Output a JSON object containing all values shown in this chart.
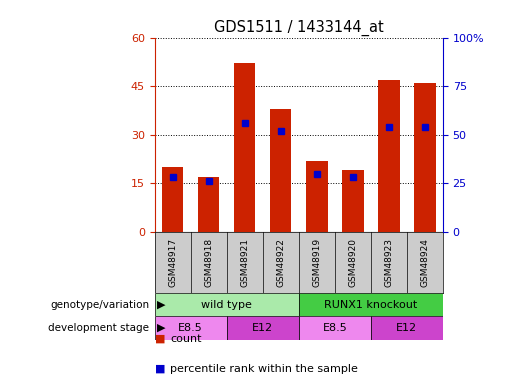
{
  "title": "GDS1511 / 1433144_at",
  "samples": [
    "GSM48917",
    "GSM48918",
    "GSM48921",
    "GSM48922",
    "GSM48919",
    "GSM48920",
    "GSM48923",
    "GSM48924"
  ],
  "counts": [
    20,
    17,
    52,
    38,
    22,
    19,
    47,
    46
  ],
  "percentiles": [
    28,
    26,
    56,
    52,
    30,
    28,
    54,
    54
  ],
  "left_ylim": [
    0,
    60
  ],
  "right_ylim": [
    0,
    100
  ],
  "left_yticks": [
    0,
    15,
    30,
    45,
    60
  ],
  "right_yticks": [
    0,
    25,
    50,
    75,
    100
  ],
  "right_yticklabels": [
    "0",
    "25",
    "50",
    "75",
    "100%"
  ],
  "bar_color": "#cc2200",
  "percentile_color": "#0000cc",
  "grid_color": "#000000",
  "bg_color": "#ffffff",
  "plot_bg": "#ffffff",
  "sample_bg": "#cccccc",
  "genotype_groups": [
    {
      "label": "wild type",
      "start": 0,
      "end": 4,
      "color": "#aaeaaa"
    },
    {
      "label": "RUNX1 knockout",
      "start": 4,
      "end": 8,
      "color": "#44cc44"
    }
  ],
  "stage_groups": [
    {
      "label": "E8.5",
      "start": 0,
      "end": 2,
      "color": "#ee88ee"
    },
    {
      "label": "E12",
      "start": 2,
      "end": 4,
      "color": "#cc44cc"
    },
    {
      "label": "E8.5",
      "start": 4,
      "end": 6,
      "color": "#ee88ee"
    },
    {
      "label": "E12",
      "start": 6,
      "end": 8,
      "color": "#cc44cc"
    }
  ],
  "label_genotype": "genotype/variation",
  "label_stage": "development stage",
  "legend_count": "count",
  "legend_percentile": "percentile rank within the sample",
  "left_axis_color": "#cc2200",
  "right_axis_color": "#0000cc"
}
